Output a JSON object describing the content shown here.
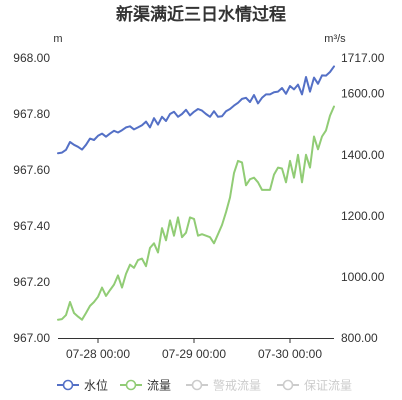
{
  "chart_data": {
    "type": "line",
    "title": "新渠满近三日水情过程",
    "left_axis": {
      "unit": "m",
      "min": 967.0,
      "max": 968.0,
      "ticks": [
        "967.00",
        "967.20",
        "967.40",
        "967.60",
        "967.80",
        "968.00"
      ]
    },
    "right_axis": {
      "unit": "m³/s",
      "min": 800,
      "max": 1717,
      "ticks": [
        "800.00",
        "1000.00",
        "1200.00",
        "1400.00",
        "1600.00",
        "1717.00"
      ]
    },
    "x_axis": {
      "unit": "hours",
      "min": 0,
      "max": 69,
      "ticks": [
        {
          "pos": 10,
          "label": "07-28 00:00"
        },
        {
          "pos": 34,
          "label": "07-29 00:00"
        },
        {
          "pos": 58,
          "label": "07-30 00:00"
        }
      ]
    },
    "series": [
      {
        "name": "水位",
        "axis": "left",
        "color": "#5470c6",
        "points": [
          [
            0,
            967.66
          ],
          [
            1,
            967.662
          ],
          [
            2,
            967.672
          ],
          [
            3,
            967.7
          ],
          [
            4,
            967.69
          ],
          [
            5,
            967.683
          ],
          [
            6,
            967.673
          ],
          [
            7,
            967.69
          ],
          [
            8,
            967.712
          ],
          [
            9,
            967.707
          ],
          [
            10,
            967.722
          ],
          [
            11,
            967.73
          ],
          [
            12,
            967.719
          ],
          [
            13,
            967.73
          ],
          [
            14,
            967.74
          ],
          [
            15,
            967.734
          ],
          [
            16,
            967.742
          ],
          [
            17,
            967.752
          ],
          [
            18,
            967.756
          ],
          [
            19,
            967.745
          ],
          [
            20,
            967.752
          ],
          [
            21,
            967.76
          ],
          [
            22,
            967.773
          ],
          [
            23,
            967.752
          ],
          [
            24,
            967.785
          ],
          [
            25,
            967.762
          ],
          [
            26,
            967.79
          ],
          [
            27,
            967.775
          ],
          [
            28,
            967.8
          ],
          [
            29,
            967.808
          ],
          [
            30,
            967.79
          ],
          [
            31,
            967.8
          ],
          [
            32,
            967.815
          ],
          [
            33,
            967.795
          ],
          [
            34,
            967.808
          ],
          [
            35,
            967.818
          ],
          [
            36,
            967.812
          ],
          [
            37,
            967.8
          ],
          [
            38,
            967.79
          ],
          [
            39,
            967.81
          ],
          [
            40,
            967.79
          ],
          [
            41,
            967.792
          ],
          [
            42,
            967.81
          ],
          [
            43,
            967.818
          ],
          [
            44,
            967.83
          ],
          [
            45,
            967.84
          ],
          [
            46,
            967.854
          ],
          [
            47,
            967.858
          ],
          [
            48,
            967.843
          ],
          [
            49,
            967.868
          ],
          [
            50,
            967.838
          ],
          [
            51,
            967.858
          ],
          [
            52,
            967.87
          ],
          [
            53,
            967.87
          ],
          [
            54,
            967.878
          ],
          [
            55,
            967.88
          ],
          [
            56,
            967.893
          ],
          [
            57,
            967.872
          ],
          [
            58,
            967.9
          ],
          [
            59,
            967.888
          ],
          [
            60,
            967.905
          ],
          [
            61,
            967.87
          ],
          [
            62,
            967.932
          ],
          [
            63,
            967.88
          ],
          [
            64,
            967.93
          ],
          [
            65,
            967.908
          ],
          [
            66,
            967.938
          ],
          [
            67,
            967.937
          ],
          [
            68,
            967.95
          ],
          [
            69,
            967.97
          ]
        ]
      },
      {
        "name": "流量",
        "axis": "right",
        "color": "#91cc75",
        "points": [
          [
            0,
            860
          ],
          [
            1,
            862
          ],
          [
            2,
            875
          ],
          [
            3,
            918
          ],
          [
            4,
            882
          ],
          [
            5,
            870
          ],
          [
            6,
            860
          ],
          [
            7,
            882
          ],
          [
            8,
            905
          ],
          [
            9,
            918
          ],
          [
            10,
            935
          ],
          [
            11,
            965
          ],
          [
            12,
            938
          ],
          [
            13,
            957
          ],
          [
            14,
            975
          ],
          [
            15,
            1005
          ],
          [
            16,
            965
          ],
          [
            17,
            1010
          ],
          [
            18,
            1040
          ],
          [
            19,
            1030
          ],
          [
            20,
            1055
          ],
          [
            21,
            1060
          ],
          [
            22,
            1035
          ],
          [
            23,
            1095
          ],
          [
            24,
            1110
          ],
          [
            25,
            1080
          ],
          [
            26,
            1160
          ],
          [
            27,
            1120
          ],
          [
            28,
            1185
          ],
          [
            29,
            1135
          ],
          [
            30,
            1195
          ],
          [
            31,
            1130
          ],
          [
            32,
            1145
          ],
          [
            33,
            1195
          ],
          [
            34,
            1190
          ],
          [
            35,
            1135
          ],
          [
            36,
            1140
          ],
          [
            37,
            1135
          ],
          [
            38,
            1130
          ],
          [
            39,
            1110
          ],
          [
            40,
            1140
          ],
          [
            41,
            1170
          ],
          [
            42,
            1212
          ],
          [
            43,
            1260
          ],
          [
            44,
            1340
          ],
          [
            45,
            1380
          ],
          [
            46,
            1375
          ],
          [
            47,
            1300
          ],
          [
            48,
            1320
          ],
          [
            49,
            1325
          ],
          [
            50,
            1310
          ],
          [
            51,
            1285
          ],
          [
            52,
            1285
          ],
          [
            53,
            1285
          ],
          [
            54,
            1335
          ],
          [
            55,
            1358
          ],
          [
            56,
            1355
          ],
          [
            57,
            1310
          ],
          [
            58,
            1380
          ],
          [
            59,
            1325
          ],
          [
            60,
            1400
          ],
          [
            61,
            1310
          ],
          [
            62,
            1400
          ],
          [
            63,
            1358
          ],
          [
            64,
            1460
          ],
          [
            65,
            1418
          ],
          [
            66,
            1460
          ],
          [
            67,
            1480
          ],
          [
            68,
            1528
          ],
          [
            69,
            1558
          ]
        ]
      }
    ],
    "legend": {
      "placement": "bottom",
      "items": [
        {
          "name": "水位",
          "color": "#5470c6",
          "active": true
        },
        {
          "name": "流量",
          "color": "#91cc75",
          "active": true
        },
        {
          "name": "警戒流量",
          "color": "#cccccc",
          "active": false
        },
        {
          "name": "保证流量",
          "color": "#cccccc",
          "active": false
        }
      ]
    },
    "grid": false
  }
}
